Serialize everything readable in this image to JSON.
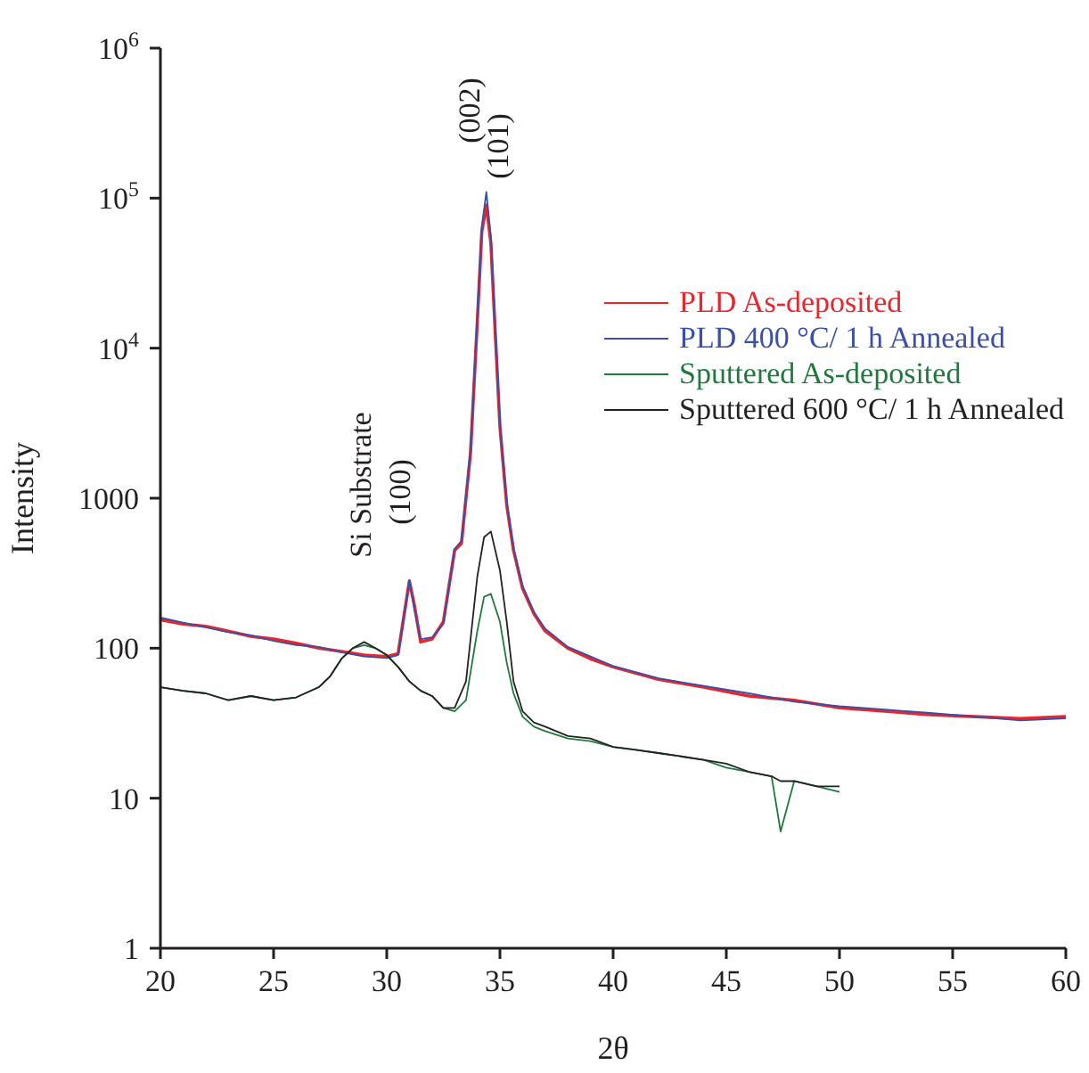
{
  "chart_data": {
    "type": "line",
    "xlabel": "2θ",
    "ylabel": "Intensity",
    "log": "y",
    "xlim": [
      20,
      60
    ],
    "xticks": [
      20,
      25,
      30,
      35,
      40,
      45,
      50,
      55,
      60
    ],
    "ylim": [
      1,
      1000000
    ],
    "yticks": [
      1,
      10,
      100,
      1000,
      {
        "value": 10000,
        "label": "10$^{4}$"
      },
      {
        "value": 100000,
        "label": "10$^{5}$"
      },
      {
        "value": 1000000,
        "label": "10$^{6}$"
      }
    ],
    "grid": false,
    "legend": "top right",
    "marker": "none",
    "line_style": "solid",
    "annotations": [
      "(002)",
      "(101)",
      "Si Substrate",
      "(100)"
    ],
    "series": [
      {
        "name": "PLD As-deposited",
        "color": "#e8262c",
        "x": [
          20,
          21,
          22,
          23,
          24,
          25,
          26,
          27,
          28,
          29,
          30,
          30.5,
          30.8,
          31,
          31.2,
          31.5,
          32,
          32.5,
          33,
          33.3,
          33.7,
          34,
          34.2,
          34.4,
          34.6,
          34.8,
          35,
          35.3,
          35.6,
          36,
          36.5,
          37,
          38,
          39,
          40,
          42,
          44,
          46,
          48,
          50,
          52,
          54,
          56,
          58,
          60
        ],
        "values": [
          155,
          145,
          140,
          130,
          120,
          115,
          108,
          100,
          95,
          90,
          88,
          92,
          180,
          280,
          200,
          110,
          115,
          150,
          450,
          500,
          2000,
          15000,
          60000,
          90000,
          50000,
          12000,
          3000,
          900,
          450,
          250,
          170,
          130,
          100,
          85,
          75,
          62,
          55,
          48,
          45,
          40,
          38,
          36,
          35,
          34,
          35
        ]
      },
      {
        "name": "PLD 400 °C/ 1 h Annealed",
        "color": "#3a4fa8",
        "x": [
          20,
          21,
          22,
          23,
          24,
          25,
          26,
          27,
          28,
          29,
          30,
          30.5,
          30.8,
          31,
          31.2,
          31.5,
          32,
          32.5,
          33,
          33.3,
          33.7,
          34,
          34.2,
          34.4,
          34.6,
          34.8,
          35,
          35.3,
          35.6,
          36,
          36.5,
          37,
          38,
          39,
          40,
          42,
          44,
          46,
          48,
          50,
          52,
          54,
          56,
          58,
          60
        ],
        "values": [
          160,
          148,
          138,
          128,
          122,
          112,
          105,
          102,
          94,
          88,
          86,
          90,
          175,
          285,
          190,
          115,
          118,
          145,
          460,
          520,
          2100,
          16000,
          65000,
          110000,
          55000,
          13000,
          3200,
          950,
          460,
          260,
          175,
          135,
          102,
          88,
          76,
          63,
          56,
          50,
          44,
          41,
          39,
          37,
          35,
          33,
          34
        ]
      },
      {
        "name": "Sputtered As-deposited",
        "color": "#1e7a3c",
        "x": [
          20,
          21,
          22,
          23,
          24,
          25,
          26,
          27,
          27.5,
          28,
          28.5,
          29,
          29.5,
          30,
          30.5,
          31,
          31.5,
          32,
          32.5,
          33,
          33.5,
          34,
          34.3,
          34.6,
          35,
          35.3,
          35.6,
          36,
          36.5,
          37,
          38,
          39,
          40,
          41,
          42,
          43,
          44,
          45,
          46,
          47,
          47.4,
          48,
          49,
          50
        ],
        "values": [
          55,
          52,
          50,
          45,
          48,
          45,
          47,
          55,
          65,
          85,
          100,
          105,
          100,
          90,
          75,
          60,
          52,
          48,
          40,
          38,
          45,
          130,
          220,
          230,
          150,
          80,
          50,
          35,
          30,
          28,
          25,
          24,
          22,
          21,
          20,
          19,
          18,
          16,
          15,
          14,
          6,
          13,
          12,
          11
        ]
      },
      {
        "name": "Sputtered 600 °C/ 1 h Annealed",
        "color": "#222222",
        "x": [
          20,
          21,
          22,
          23,
          24,
          25,
          26,
          27,
          27.5,
          28,
          28.5,
          29,
          29.5,
          30,
          30.5,
          31,
          31.5,
          32,
          32.5,
          33,
          33.5,
          34,
          34.3,
          34.6,
          35,
          35.3,
          35.6,
          36,
          36.5,
          37,
          38,
          39,
          40,
          41,
          42,
          43,
          44,
          45,
          46,
          47,
          47.4,
          48,
          49,
          50
        ],
        "values": [
          55,
          52,
          50,
          45,
          48,
          45,
          47,
          55,
          65,
          85,
          100,
          110,
          100,
          90,
          75,
          60,
          52,
          48,
          40,
          40,
          60,
          300,
          550,
          600,
          330,
          150,
          60,
          38,
          32,
          30,
          26,
          25,
          22,
          21,
          20,
          19,
          18,
          17,
          15,
          14,
          13,
          13,
          12,
          12
        ]
      }
    ]
  }
}
